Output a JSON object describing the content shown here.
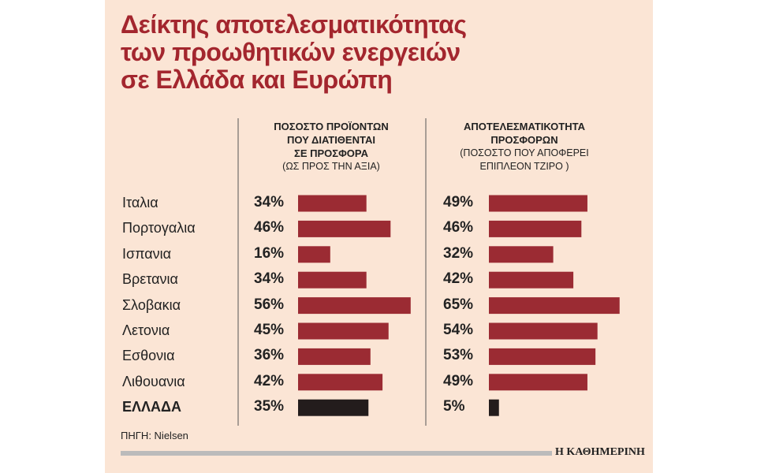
{
  "title": "Δείκτης αποτελεσματικότητας\nτων προωθητικών ενεργειών\nσε Ελλάδα και Ευρώπη",
  "source": "ΠΗΓΗ: Nielsen",
  "brand": "Η ΚΑΘΗΜΕΡΙΝΗ",
  "chart_data": {
    "type": "bar",
    "categories": [
      "Ιταλια",
      "Πορτογαλια",
      "Ισπανια",
      "Βρετανια",
      "Σλοβακια",
      "Λετονια",
      "Εσθονια",
      "Λιθουανια",
      "ΕΛΛΑΔΑ"
    ],
    "series": [
      {
        "name": "ΠΟΣΟΣΤΟ ΠΡΟΪΟΝΤΩΝ\nΠΟΥ ΔΙΑΤΙΘΕΝΤΑΙ\nΣΕ ΠΡΟΣΦΟΡΑ",
        "note": "(ΩΣ ΠΡΟΣ ΤΗΝ ΑΞΙΑ)",
        "colors": [
          "#9b2b33",
          "#9b2b33",
          "#9b2b33",
          "#9b2b33",
          "#9b2b33",
          "#9b2b33",
          "#9b2b33",
          "#9b2b33",
          "#231c1c"
        ],
        "values": [
          34,
          46,
          16,
          34,
          56,
          45,
          36,
          42,
          35
        ],
        "value_labels": [
          "34%",
          "46%",
          "16%",
          "34%",
          "56%",
          "45%",
          "36%",
          "42%",
          "35%"
        ]
      },
      {
        "name": "ΑΠΟΤΕΛΕΣΜΑΤΙΚΟΤΗΤΑ\nΠΡΟΣΦΟΡΩΝ",
        "note": "(ΠΟΣΟΣΤΟ ΠΟΥ ΑΠΟΦΕΡΕΙ\nΕΠΙΠΛΕΟΝ ΤΖΙΡΟ )",
        "colors": [
          "#9b2b33",
          "#9b2b33",
          "#9b2b33",
          "#9b2b33",
          "#9b2b33",
          "#9b2b33",
          "#9b2b33",
          "#9b2b33",
          "#231c1c"
        ],
        "values": [
          49,
          46,
          32,
          42,
          65,
          54,
          53,
          49,
          5
        ],
        "value_labels": [
          "49%",
          "46%",
          "32%",
          "42%",
          "65%",
          "54%",
          "53%",
          "49%",
          "5%"
        ]
      }
    ]
  }
}
